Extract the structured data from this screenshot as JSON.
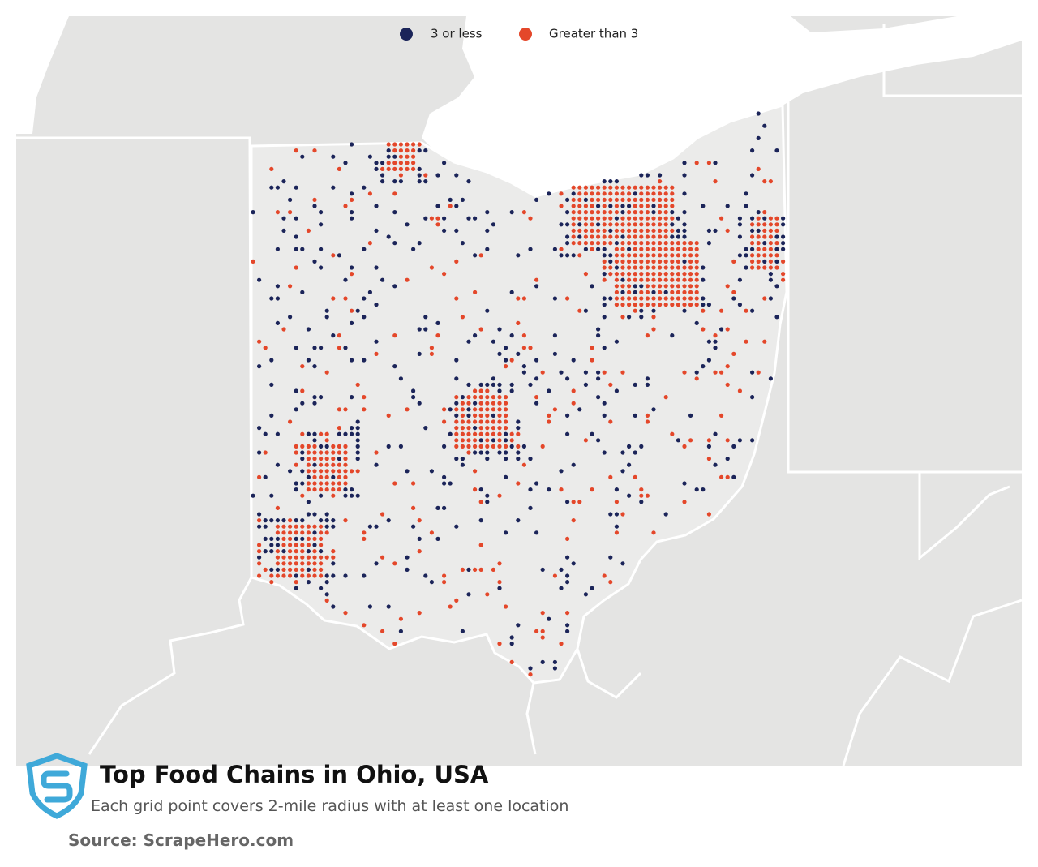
{
  "legend": {
    "items": [
      "3 or less",
      "Greater than 3"
    ]
  },
  "title": "Top Food Chains in Ohio, USA",
  "subtitle": "Each grid point covers 2-mile radius with at least one location",
  "source": "Source: ScrapeHero.com"
}
